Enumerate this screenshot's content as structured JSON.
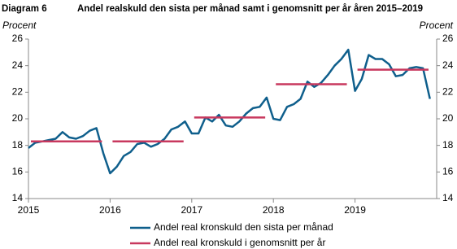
{
  "chart_data": {
    "type": "line",
    "label": "Diagram 6",
    "title": "Andel realskuld den sista per månad samt i genomsnitt per år åren 2015–2019",
    "y_label": "Procent",
    "y2_label": "Procent",
    "xlim": [
      2015,
      2020
    ],
    "xticks": [
      2015,
      2016,
      2017,
      2018,
      2019
    ],
    "ylim": [
      14,
      26
    ],
    "yticks": [
      14,
      16,
      18,
      20,
      22,
      24,
      26
    ],
    "y2lim": [
      14,
      26
    ],
    "y2ticks": [
      14,
      16,
      18,
      20,
      22,
      24,
      26
    ],
    "series": [
      {
        "name": "Andel real kronskuld den sista per månad",
        "color": "#0f5f8c",
        "x": [
          2015,
          2015.083,
          2015.167,
          2015.25,
          2015.333,
          2015.417,
          2015.5,
          2015.583,
          2015.667,
          2015.75,
          2015.833,
          2015.917,
          2016,
          2016.083,
          2016.167,
          2016.25,
          2016.333,
          2016.417,
          2016.5,
          2016.583,
          2016.667,
          2016.75,
          2016.833,
          2016.917,
          2017,
          2017.083,
          2017.167,
          2017.25,
          2017.333,
          2017.417,
          2017.5,
          2017.583,
          2017.667,
          2017.75,
          2017.833,
          2017.917,
          2018,
          2018.083,
          2018.167,
          2018.25,
          2018.333,
          2018.417,
          2018.5,
          2018.583,
          2018.667,
          2018.75,
          2018.833,
          2018.917,
          2019,
          2019.083,
          2019.167,
          2019.25,
          2019.333,
          2019.417,
          2019.5,
          2019.583,
          2019.667,
          2019.75,
          2019.833,
          2019.917
        ],
        "values": [
          17.8,
          18.2,
          18.3,
          18.4,
          18.5,
          19.0,
          18.6,
          18.5,
          18.7,
          19.1,
          19.3,
          17.4,
          15.9,
          16.4,
          17.2,
          17.5,
          18.1,
          18.2,
          17.9,
          18.1,
          18.5,
          19.2,
          19.4,
          19.8,
          18.9,
          18.9,
          20.1,
          19.8,
          20.3,
          19.5,
          19.4,
          19.8,
          20.4,
          20.8,
          20.9,
          21.6,
          20.0,
          19.9,
          20.9,
          21.1,
          21.5,
          22.8,
          22.4,
          22.7,
          23.3,
          24.0,
          24.5,
          25.2,
          22.1,
          23.0,
          24.8,
          24.5,
          24.5,
          24.1,
          23.2,
          23.3,
          23.8,
          23.9,
          23.8,
          21.5
        ]
      },
      {
        "name": "Andel real kronskuld i genomsnitt per år",
        "color": "#c8385e",
        "style": "segments",
        "x": [
          2015,
          2016,
          2017,
          2018,
          2019
        ],
        "values": [
          18.3,
          18.3,
          20.1,
          22.6,
          23.7
        ]
      }
    ]
  }
}
